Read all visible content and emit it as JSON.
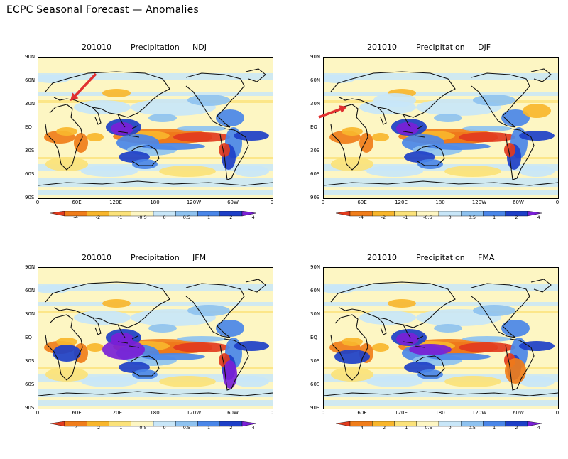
{
  "page_title": "ECPC Seasonal Forecast — Anomalies",
  "lat_labels": [
    "90N",
    "60N",
    "30N",
    "EQ",
    "30S",
    "60S",
    "90S"
  ],
  "lon_labels": [
    "0",
    "60E",
    "120E",
    "180",
    "120W",
    "60W",
    "0"
  ],
  "colorbar": {
    "labels": [
      "-4",
      "-2",
      "-1",
      "-0.5",
      "0",
      "0.5",
      "1",
      "2",
      "4"
    ],
    "colors": [
      "#e23b1e",
      "#f07d1a",
      "#f8b62c",
      "#fbe27a",
      "#fdf6c3",
      "#c8e6f8",
      "#8ec2f0",
      "#4a86e8",
      "#1d3fc8",
      "#7a1fd6"
    ]
  },
  "colors": {
    "arrow": "#e03030",
    "coast": "#111111",
    "land_neutral": "#fdf6c3"
  },
  "panels": [
    {
      "id": "ndj",
      "date": "201010",
      "variable": "Precipitation",
      "season": "NDJ",
      "arrow": "ne"
    },
    {
      "id": "djf",
      "date": "201010",
      "variable": "Precipitation",
      "season": "DJF",
      "arrow": "sw"
    },
    {
      "id": "jfm",
      "date": "201010",
      "variable": "Precipitation",
      "season": "JFM",
      "arrow": "none"
    },
    {
      "id": "fma",
      "date": "201010",
      "variable": "Precipitation",
      "season": "FMA",
      "arrow": "none"
    }
  ]
}
